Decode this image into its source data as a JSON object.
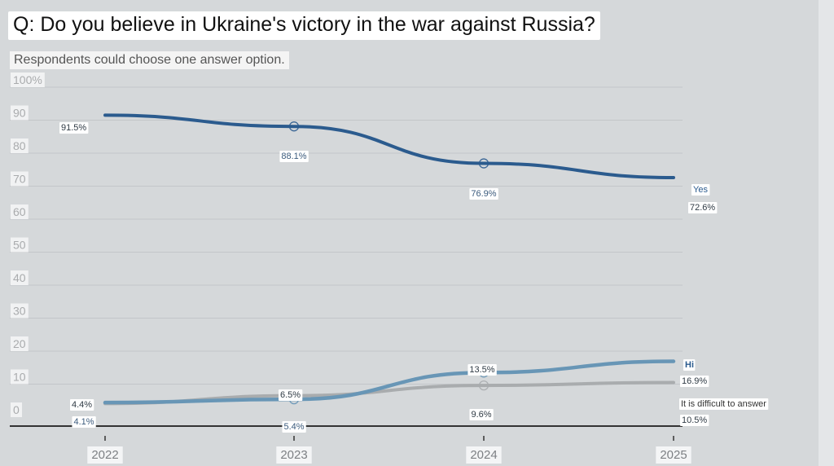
{
  "title": "Q: Do you believe in Ukraine's victory in the war against Russia?",
  "subtitle": "Respondents could choose one answer option.",
  "chart_data": {
    "type": "line",
    "x": [
      "2022",
      "2023",
      "2024",
      "2025"
    ],
    "y_ticks": [
      "0",
      "10",
      "20",
      "30",
      "40",
      "50",
      "60",
      "70",
      "80",
      "90",
      "100%"
    ],
    "ylim": [
      0,
      100
    ],
    "grid": true,
    "series": [
      {
        "key": "yes",
        "name": "Yes",
        "values": [
          91.5,
          88.1,
          76.9,
          72.6
        ],
        "labels": [
          "91.5%",
          "88.1%",
          "76.9%",
          "72.6%"
        ],
        "color": "#2b5b8e"
      },
      {
        "key": "no",
        "name": "Hi",
        "values": [
          4.4,
          5.4,
          13.5,
          16.9
        ],
        "labels": [
          "4.4%",
          "5.4%",
          "13.5%",
          "16.9%"
        ],
        "color": "#6896b6"
      },
      {
        "key": "difficult",
        "name": "It is difficult to answer",
        "values": [
          4.1,
          6.5,
          9.6,
          10.5
        ],
        "labels": [
          "4.1%",
          "6.5%",
          "9.6%",
          "10.5%"
        ],
        "color": "#a9acae"
      }
    ]
  }
}
